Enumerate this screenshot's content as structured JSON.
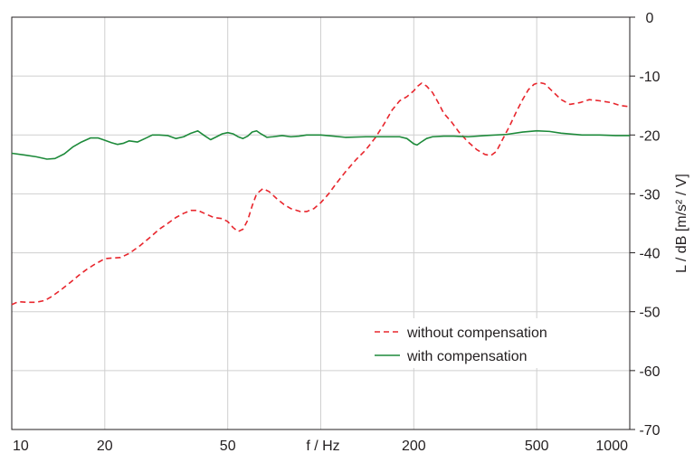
{
  "chart_data": {
    "type": "line",
    "xlabel": "f / Hz",
    "ylabel": "L / dB [m/s² / V]",
    "x_scale": "log",
    "xlim": [
      10,
      1000
    ],
    "ylim": [
      -70,
      0
    ],
    "x_ticks": [
      {
        "value": 10,
        "label": "10"
      },
      {
        "value": 20,
        "label": "20"
      },
      {
        "value": 50,
        "label": "50"
      },
      {
        "value": 200,
        "label": "200"
      },
      {
        "value": 500,
        "label": "500"
      },
      {
        "value": 1000,
        "label": "1000"
      }
    ],
    "x_gridlines": [
      10,
      20,
      50,
      100,
      200,
      500,
      1000
    ],
    "y_ticks": [
      {
        "value": 0,
        "label": "0"
      },
      {
        "value": -10,
        "label": "-10"
      },
      {
        "value": -20,
        "label": "-20"
      },
      {
        "value": -30,
        "label": "-30"
      },
      {
        "value": -40,
        "label": "-40"
      },
      {
        "value": -50,
        "label": "-50"
      },
      {
        "value": -60,
        "label": "-60"
      },
      {
        "value": -70,
        "label": "-70"
      }
    ],
    "grid": true,
    "legend": "lower-right",
    "series": [
      {
        "name": "without compensation",
        "color": "#e8262d",
        "style": "dashed",
        "points": [
          [
            10,
            -48.8
          ],
          [
            10.5,
            -48.3
          ],
          [
            11.2,
            -48.4
          ],
          [
            12,
            -48.4
          ],
          [
            12.8,
            -48.1
          ],
          [
            13.5,
            -47.4
          ],
          [
            14.5,
            -46.2
          ],
          [
            15.5,
            -45.0
          ],
          [
            16.5,
            -43.8
          ],
          [
            17.5,
            -42.8
          ],
          [
            18.5,
            -42.0
          ],
          [
            20,
            -41.0
          ],
          [
            21,
            -40.9
          ],
          [
            22.5,
            -40.8
          ],
          [
            24,
            -40.1
          ],
          [
            26,
            -38.8
          ],
          [
            28,
            -37.4
          ],
          [
            30,
            -36.0
          ],
          [
            32,
            -35.0
          ],
          [
            34,
            -34.0
          ],
          [
            36,
            -33.3
          ],
          [
            38,
            -32.8
          ],
          [
            40,
            -32.8
          ],
          [
            42,
            -33.3
          ],
          [
            45,
            -34.0
          ],
          [
            48,
            -34.2
          ],
          [
            50,
            -34.7
          ],
          [
            52,
            -35.7
          ],
          [
            54,
            -36.4
          ],
          [
            56,
            -36.0
          ],
          [
            58,
            -34.5
          ],
          [
            60,
            -32.0
          ],
          [
            62,
            -30.0
          ],
          [
            65,
            -29.1
          ],
          [
            68,
            -29.6
          ],
          [
            72,
            -30.8
          ],
          [
            76,
            -31.8
          ],
          [
            80,
            -32.5
          ],
          [
            86,
            -33.0
          ],
          [
            90,
            -33.0
          ],
          [
            95,
            -32.5
          ],
          [
            100,
            -31.5
          ],
          [
            106,
            -30.0
          ],
          [
            112,
            -28.3
          ],
          [
            120,
            -26.3
          ],
          [
            130,
            -24.2
          ],
          [
            140,
            -22.5
          ],
          [
            150,
            -20.5
          ],
          [
            160,
            -18.2
          ],
          [
            170,
            -15.8
          ],
          [
            180,
            -14.2
          ],
          [
            190,
            -13.5
          ],
          [
            200,
            -12.5
          ],
          [
            206,
            -11.7
          ],
          [
            212,
            -11.2
          ],
          [
            220,
            -11.7
          ],
          [
            230,
            -12.8
          ],
          [
            240,
            -14.5
          ],
          [
            250,
            -16.3
          ],
          [
            265,
            -17.8
          ],
          [
            280,
            -19.5
          ],
          [
            300,
            -21.2
          ],
          [
            320,
            -22.5
          ],
          [
            340,
            -23.3
          ],
          [
            355,
            -23.5
          ],
          [
            370,
            -22.8
          ],
          [
            390,
            -20.5
          ],
          [
            410,
            -18.3
          ],
          [
            430,
            -16.0
          ],
          [
            450,
            -14.0
          ],
          [
            470,
            -12.3
          ],
          [
            490,
            -11.4
          ],
          [
            510,
            -11.1
          ],
          [
            530,
            -11.3
          ],
          [
            560,
            -12.5
          ],
          [
            600,
            -14.0
          ],
          [
            640,
            -14.8
          ],
          [
            690,
            -14.5
          ],
          [
            740,
            -14.0
          ],
          [
            800,
            -14.2
          ],
          [
            870,
            -14.5
          ],
          [
            930,
            -15.0
          ],
          [
            1000,
            -15.2
          ]
        ]
      },
      {
        "name": "with compensation",
        "color": "#1d8a3a",
        "style": "solid",
        "points": [
          [
            10,
            -23.1
          ],
          [
            11,
            -23.4
          ],
          [
            12,
            -23.7
          ],
          [
            13,
            -24.1
          ],
          [
            13.8,
            -24.0
          ],
          [
            14.8,
            -23.2
          ],
          [
            15.8,
            -22.0
          ],
          [
            16.8,
            -21.2
          ],
          [
            18,
            -20.5
          ],
          [
            19,
            -20.5
          ],
          [
            20,
            -20.9
          ],
          [
            21,
            -21.3
          ],
          [
            22,
            -21.6
          ],
          [
            23,
            -21.4
          ],
          [
            24,
            -21.0
          ],
          [
            25.5,
            -21.2
          ],
          [
            27,
            -20.6
          ],
          [
            28.5,
            -20.0
          ],
          [
            30,
            -20.0
          ],
          [
            32,
            -20.1
          ],
          [
            34,
            -20.6
          ],
          [
            36,
            -20.3
          ],
          [
            38,
            -19.7
          ],
          [
            40,
            -19.3
          ],
          [
            42,
            -20.1
          ],
          [
            44,
            -20.8
          ],
          [
            46,
            -20.3
          ],
          [
            48,
            -19.8
          ],
          [
            50,
            -19.6
          ],
          [
            52,
            -19.8
          ],
          [
            54,
            -20.3
          ],
          [
            56,
            -20.6
          ],
          [
            58,
            -20.2
          ],
          [
            60,
            -19.5
          ],
          [
            62,
            -19.3
          ],
          [
            64,
            -19.8
          ],
          [
            67,
            -20.4
          ],
          [
            70,
            -20.3
          ],
          [
            75,
            -20.1
          ],
          [
            80,
            -20.3
          ],
          [
            85,
            -20.2
          ],
          [
            90,
            -20.0
          ],
          [
            100,
            -20.0
          ],
          [
            110,
            -20.2
          ],
          [
            120,
            -20.4
          ],
          [
            140,
            -20.3
          ],
          [
            160,
            -20.3
          ],
          [
            180,
            -20.3
          ],
          [
            190,
            -20.6
          ],
          [
            200,
            -21.5
          ],
          [
            205,
            -21.7
          ],
          [
            210,
            -21.3
          ],
          [
            220,
            -20.6
          ],
          [
            230,
            -20.3
          ],
          [
            250,
            -20.2
          ],
          [
            270,
            -20.2
          ],
          [
            300,
            -20.3
          ],
          [
            340,
            -20.1
          ],
          [
            400,
            -19.9
          ],
          [
            450,
            -19.5
          ],
          [
            500,
            -19.3
          ],
          [
            550,
            -19.4
          ],
          [
            600,
            -19.7
          ],
          [
            700,
            -20.0
          ],
          [
            800,
            -20.0
          ],
          [
            900,
            -20.1
          ],
          [
            1000,
            -20.1
          ]
        ]
      }
    ]
  }
}
